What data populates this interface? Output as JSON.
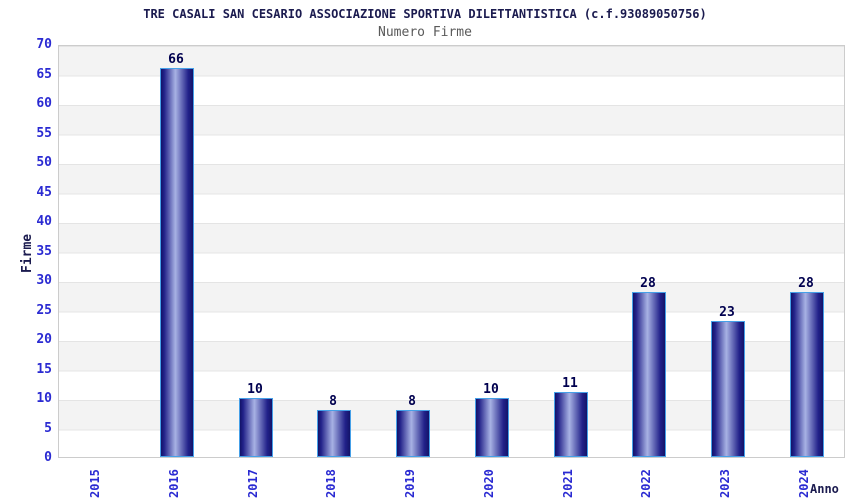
{
  "chart_data": {
    "type": "bar",
    "title": "TRE CASALI SAN CESARIO ASSOCIAZIONE SPORTIVA DILETTANTISTICA (c.f.93089050756)",
    "subtitle": "Numero Firme",
    "xlabel": "Anno",
    "ylabel": "Firme",
    "categories": [
      "2015",
      "2016",
      "2017",
      "2018",
      "2019",
      "2020",
      "2021",
      "2022",
      "2023",
      "2024"
    ],
    "values": [
      0,
      66,
      10,
      8,
      8,
      10,
      11,
      28,
      23,
      28
    ],
    "ylim": [
      0,
      70
    ],
    "ytick_step": 5,
    "yticks": [
      0,
      5,
      10,
      15,
      20,
      25,
      30,
      35,
      40,
      45,
      50,
      55,
      60,
      65,
      70
    ],
    "grid": "horizontal",
    "legend": "none",
    "band_fill": "alternating 5-unit horizontal stripes",
    "colors": {
      "bar_edge_dark": "#131368",
      "bar_mid": "#22228a",
      "bar_highlight": "#a8b2e4",
      "bar_border": "#45a0e8",
      "tick_label": "#2a2ad2",
      "value_label": "#00004f",
      "title": "#1b1b4f",
      "subtitle": "#5a5a5a",
      "band_gray": "#f3f3f3",
      "grid_line": "#e4e4e4",
      "plot_border": "#cccccc",
      "background": "#ffffff"
    }
  }
}
